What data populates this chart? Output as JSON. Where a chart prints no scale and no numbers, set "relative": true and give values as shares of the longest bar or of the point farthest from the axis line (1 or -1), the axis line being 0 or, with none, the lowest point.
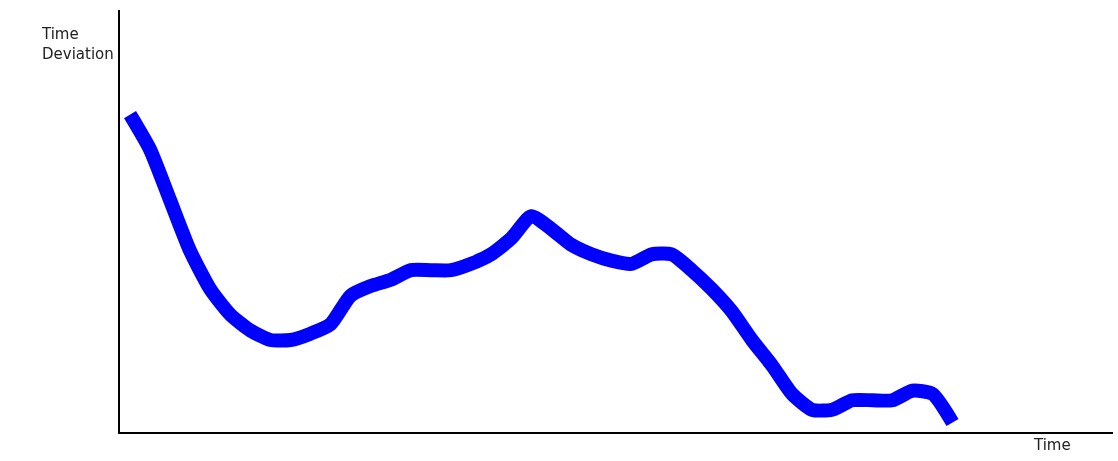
{
  "chart_data": {
    "type": "line",
    "relative": true,
    "xlabel": "Time",
    "ylabel": "Time Deviation",
    "categories": [
      null,
      null,
      null,
      null,
      null,
      null,
      null,
      null,
      null,
      null,
      null,
      null,
      null,
      null,
      null,
      null,
      null,
      null,
      null,
      null,
      null,
      null,
      null,
      null,
      null,
      null,
      null,
      null,
      null,
      null,
      null,
      null,
      null,
      null,
      null,
      null,
      null,
      null,
      null,
      null,
      null,
      null
    ],
    "series": [
      {
        "color": "#0000ff",
        "values": [
          1.0,
          0.89,
          0.73,
          0.57,
          0.45,
          0.37,
          0.32,
          0.29,
          0.29,
          0.31,
          0.34,
          0.43,
          0.46,
          0.48,
          0.51,
          0.51,
          0.51,
          0.53,
          0.56,
          0.61,
          0.68,
          0.64,
          0.59,
          0.56,
          0.54,
          0.53,
          0.56,
          0.56,
          0.51,
          0.45,
          0.38,
          0.29,
          0.21,
          0.12,
          0.07,
          0.07,
          0.1,
          0.1,
          0.1,
          0.13,
          0.12,
          0.03
        ]
      }
    ],
    "marker": "none",
    "line_style": "solid"
  }
}
